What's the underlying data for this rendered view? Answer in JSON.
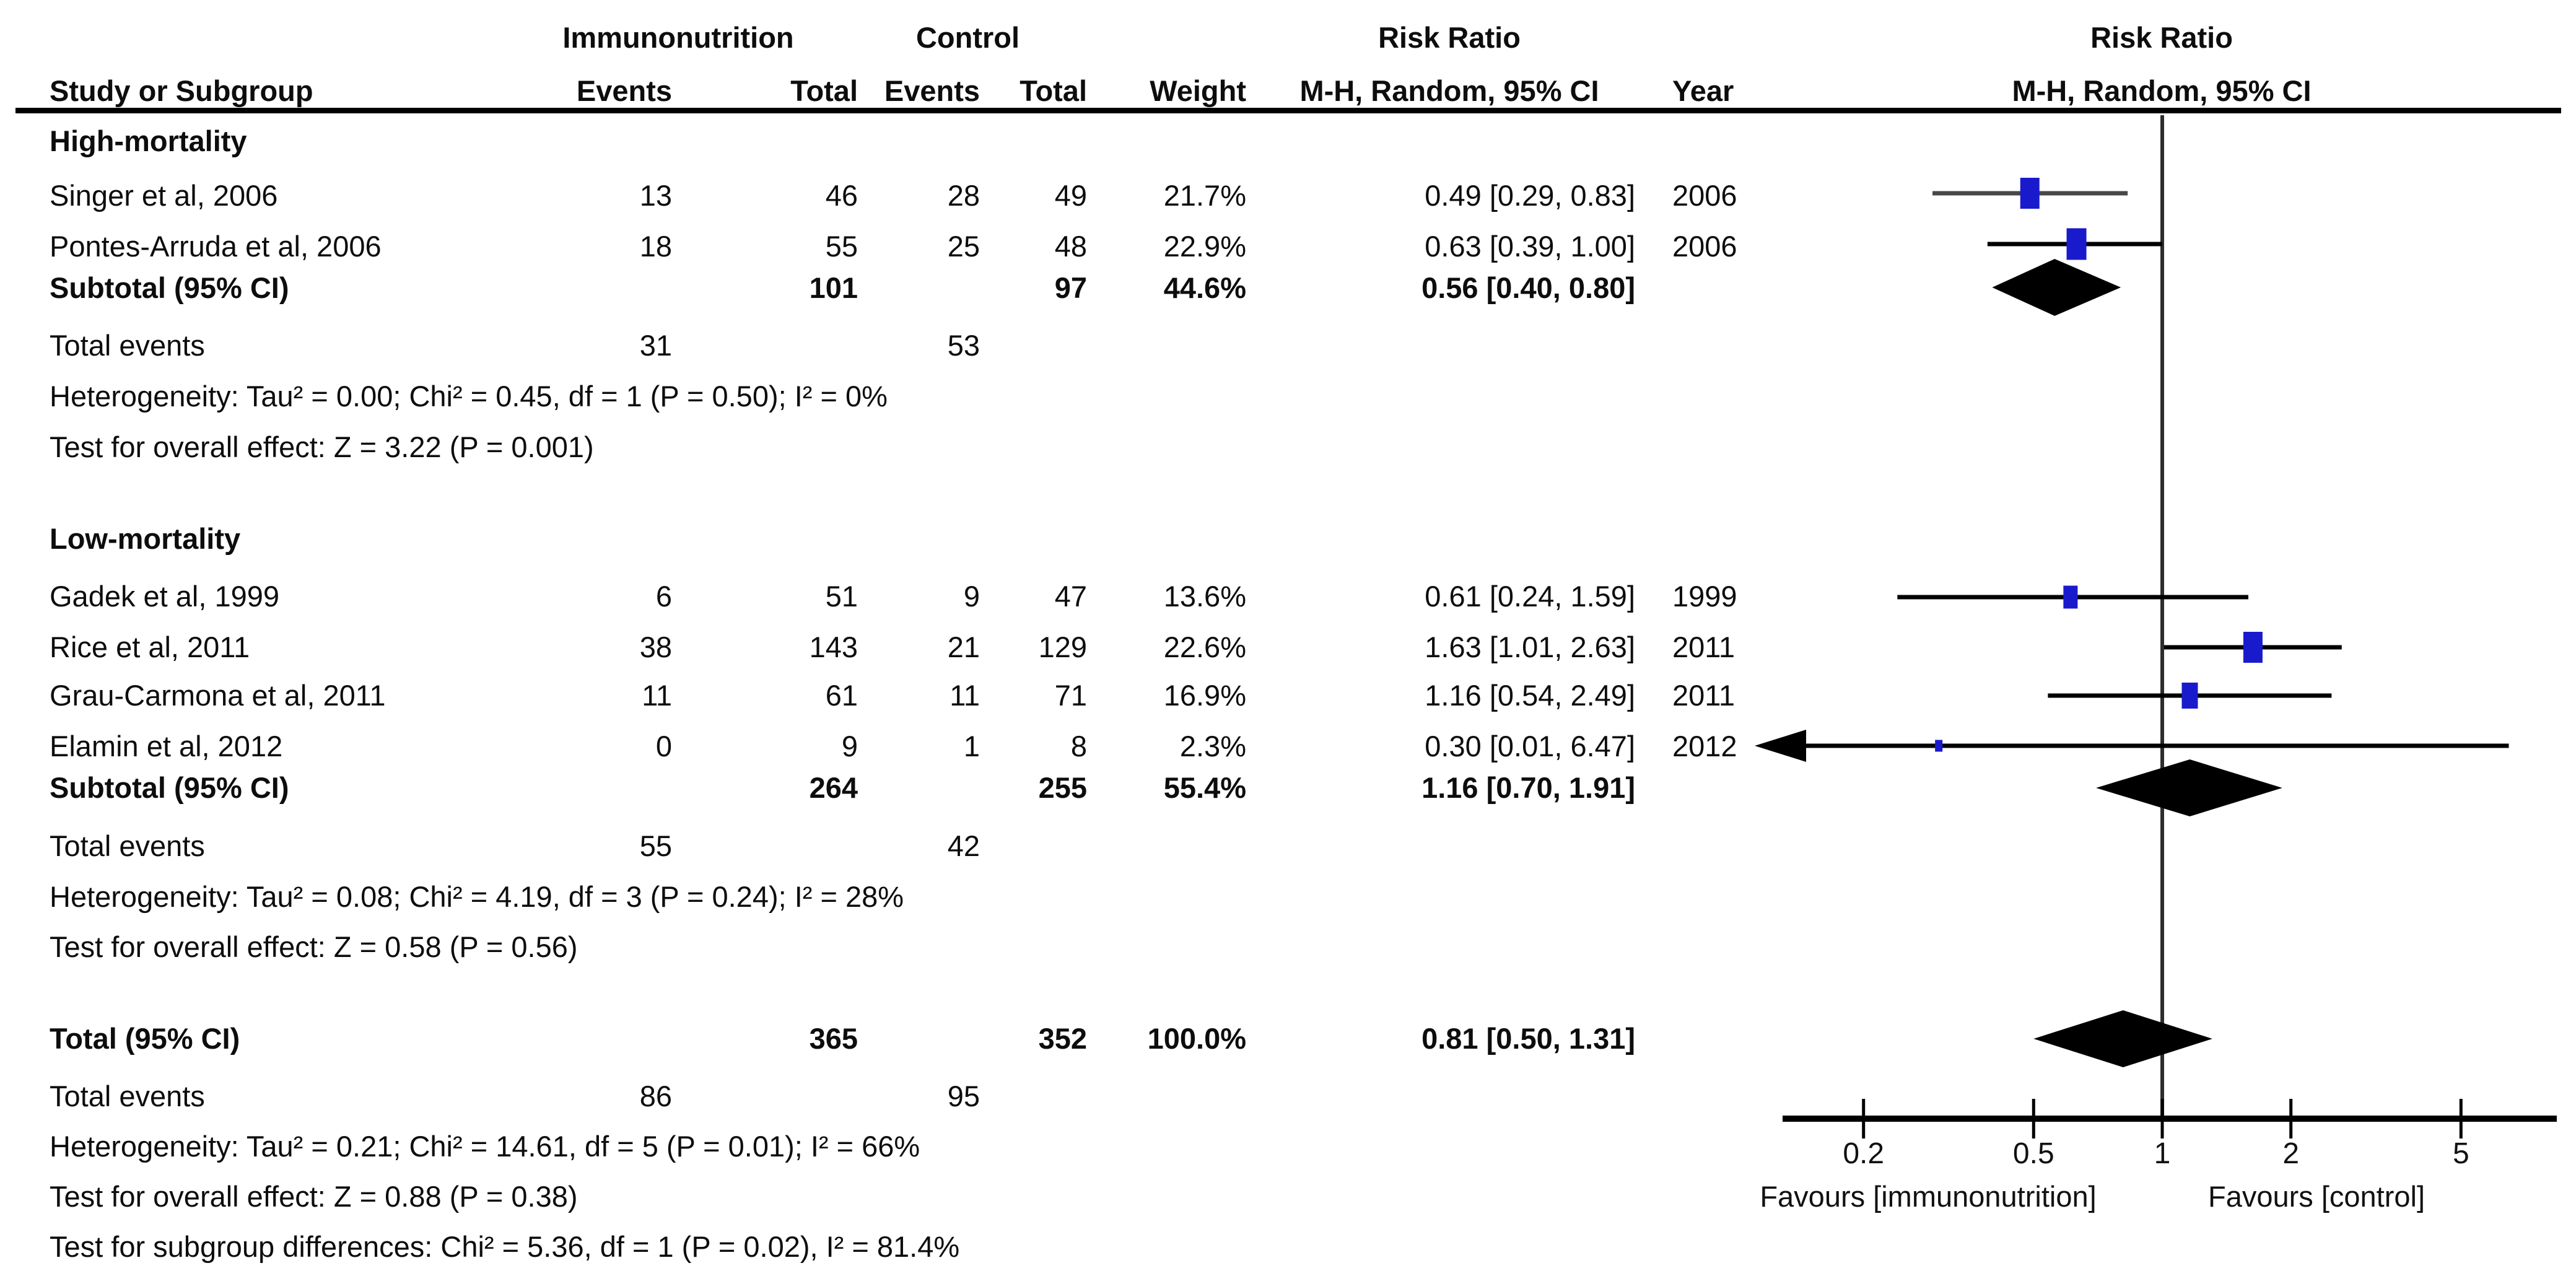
{
  "header": {
    "group1": "Immunonutrition",
    "group2": "Control",
    "col_study": "Study or Subgroup",
    "col_events": "Events",
    "col_total": "Total",
    "col_weight": "Weight",
    "rr_label": "Risk Ratio",
    "method_label": "M-H, Random, 95% CI",
    "col_year": "Year"
  },
  "colors": {
    "square": "#1a1acd",
    "ci": "#000000",
    "diamond": "#000000",
    "accent_gray_ci": "#474747"
  },
  "sections": [
    {
      "title": "High-mortality",
      "studies": [
        {
          "name": "Singer et al, 2006",
          "e1": "13",
          "t1": "46",
          "e2": "28",
          "t2": "49",
          "weight": "21.7%",
          "rr": "0.49 [0.29, 0.83]",
          "year": "2006"
        },
        {
          "name": "Pontes-Arruda et al, 2006",
          "e1": "18",
          "t1": "55",
          "e2": "25",
          "t2": "48",
          "weight": "22.9%",
          "rr": "0.63 [0.39, 1.00]",
          "year": "2006"
        }
      ],
      "subtotal": {
        "label": "Subtotal (95% CI)",
        "t1": "101",
        "t2": "97",
        "weight": "44.6%",
        "rr": "0.56 [0.40, 0.80]"
      },
      "total_events": {
        "label": "Total events",
        "e1": "31",
        "e2": "53"
      },
      "heterogeneity": "Heterogeneity: Tau² = 0.00; Chi² = 0.45, df = 1 (P = 0.50); I² = 0%",
      "overall": "Test for overall effect: Z = 3.22 (P = 0.001)"
    },
    {
      "title": "Low-mortality",
      "studies": [
        {
          "name": "Gadek et al, 1999",
          "e1": "6",
          "t1": "51",
          "e2": "9",
          "t2": "47",
          "weight": "13.6%",
          "rr": "0.61 [0.24, 1.59]",
          "year": "1999"
        },
        {
          "name": "Rice et al, 2011",
          "e1": "38",
          "t1": "143",
          "e2": "21",
          "t2": "129",
          "weight": "22.6%",
          "rr": "1.63 [1.01, 2.63]",
          "year": "2011"
        },
        {
          "name": "Grau-Carmona et al, 2011",
          "e1": "11",
          "t1": "61",
          "e2": "11",
          "t2": "71",
          "weight": "16.9%",
          "rr": "1.16 [0.54, 2.49]",
          "year": "2011"
        },
        {
          "name": "Elamin et al, 2012",
          "e1": "0",
          "t1": "9",
          "e2": "1",
          "t2": "8",
          "weight": "2.3%",
          "rr": "0.30 [0.01, 6.47]",
          "year": "2012"
        }
      ],
      "subtotal": {
        "label": "Subtotal (95% CI)",
        "t1": "264",
        "t2": "255",
        "weight": "55.4%",
        "rr": "1.16 [0.70, 1.91]"
      },
      "total_events": {
        "label": "Total events",
        "e1": "55",
        "e2": "42"
      },
      "heterogeneity": "Heterogeneity: Tau² = 0.08; Chi² = 4.19, df = 3 (P = 0.24); I² = 28%",
      "overall": "Test for overall effect: Z = 0.58 (P = 0.56)"
    }
  ],
  "total": {
    "label": "Total (95% CI)",
    "t1": "365",
    "t2": "352",
    "weight": "100.0%",
    "rr": "0.81 [0.50, 1.31]",
    "total_events": {
      "label": "Total events",
      "e1": "86",
      "e2": "95"
    },
    "heterogeneity": "Heterogeneity: Tau² = 0.21; Chi² = 14.61, df = 5 (P = 0.01); I² = 66%",
    "overall": "Test for overall effect: Z = 0.88 (P = 0.38)",
    "subgroup": "Test for subgroup differences: Chi² = 5.36, df = 1 (P = 0.02), I² = 81.4%"
  },
  "chart_data": {
    "type": "forest",
    "x_scale": "log10",
    "x_ticks": [
      "0.2",
      "0.5",
      "1",
      "2",
      "5"
    ],
    "x_range": [
      0.13,
      7.5
    ],
    "effect_label": "Risk Ratio (M-H, Random, 95% CI)",
    "favours_left": "Favours [immunonutrition]",
    "favours_right": "Favours [control]",
    "studies": [
      {
        "name": "Singer et al, 2006",
        "group": "High-mortality",
        "rr": 0.49,
        "ci": [
          0.29,
          0.83
        ],
        "weight": 21.7,
        "year": 2006
      },
      {
        "name": "Pontes-Arruda et al, 2006",
        "group": "High-mortality",
        "rr": 0.63,
        "ci": [
          0.39,
          1.0
        ],
        "weight": 22.9,
        "year": 2006
      },
      {
        "name": "Gadek et al, 1999",
        "group": "Low-mortality",
        "rr": 0.61,
        "ci": [
          0.24,
          1.59
        ],
        "weight": 13.6,
        "year": 1999
      },
      {
        "name": "Rice et al, 2011",
        "group": "Low-mortality",
        "rr": 1.63,
        "ci": [
          1.01,
          2.63
        ],
        "weight": 22.6,
        "year": 2011
      },
      {
        "name": "Grau-Carmona et al, 2011",
        "group": "Low-mortality",
        "rr": 1.16,
        "ci": [
          0.54,
          2.49
        ],
        "weight": 16.9,
        "year": 2011
      },
      {
        "name": "Elamin et al, 2012",
        "group": "Low-mortality",
        "rr": 0.3,
        "ci": [
          0.01,
          6.47
        ],
        "weight": 2.3,
        "year": 2012
      }
    ],
    "summaries": [
      {
        "name": "High-mortality Subtotal (95% CI)",
        "rr": 0.56,
        "ci": [
          0.4,
          0.8
        ],
        "weight": 44.6
      },
      {
        "name": "Low-mortality Subtotal (95% CI)",
        "rr": 1.16,
        "ci": [
          0.7,
          1.91
        ],
        "weight": 55.4
      },
      {
        "name": "Total (95% CI)",
        "rr": 0.81,
        "ci": [
          0.5,
          1.31
        ],
        "weight": 100.0
      }
    ]
  }
}
